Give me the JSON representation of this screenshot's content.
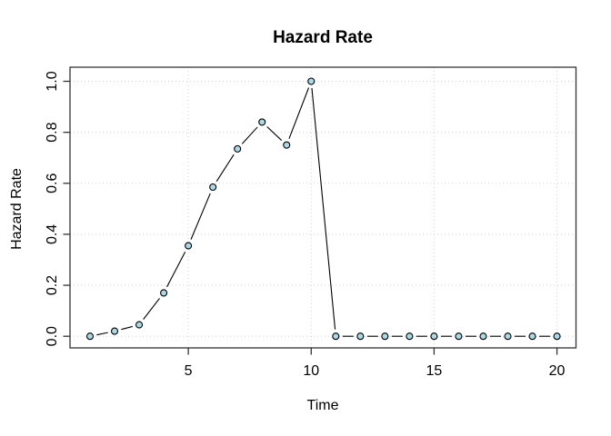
{
  "chart_data": {
    "type": "line",
    "title": "Hazard Rate",
    "xlabel": "Time",
    "ylabel": "Hazard Rate",
    "x": [
      1,
      2,
      3,
      4,
      5,
      6,
      7,
      8,
      9,
      10,
      11,
      12,
      13,
      14,
      15,
      16,
      17,
      18,
      19,
      20
    ],
    "values": [
      0,
      0.02,
      0.045,
      0.17,
      0.355,
      0.585,
      0.735,
      0.84,
      0.75,
      1.0,
      0,
      0,
      0,
      0,
      0,
      0,
      0,
      0,
      0,
      0
    ],
    "x_ticks": [
      5,
      10,
      15,
      20
    ],
    "x_tick_labels": [
      "5",
      "10",
      "15",
      "20"
    ],
    "y_ticks": [
      0.0,
      0.2,
      0.4,
      0.6,
      0.8,
      1.0
    ],
    "y_tick_labels": [
      "0.0",
      "0.2",
      "0.4",
      "0.6",
      "0.8",
      "1.0"
    ],
    "xlim": [
      0.24,
      20.76
    ],
    "ylim": [
      -0.04,
      1.04
    ],
    "grid": true,
    "legend": "none",
    "marker": "filled-circle",
    "line_style": "both-points-and-lines",
    "colors": {
      "point_fill": "#ADD8E6",
      "point_stroke": "#000000",
      "line": "#000000",
      "grid": "#d3d3d3",
      "axis_box": "#333333",
      "text": "#000000",
      "background": "#ffffff"
    }
  }
}
